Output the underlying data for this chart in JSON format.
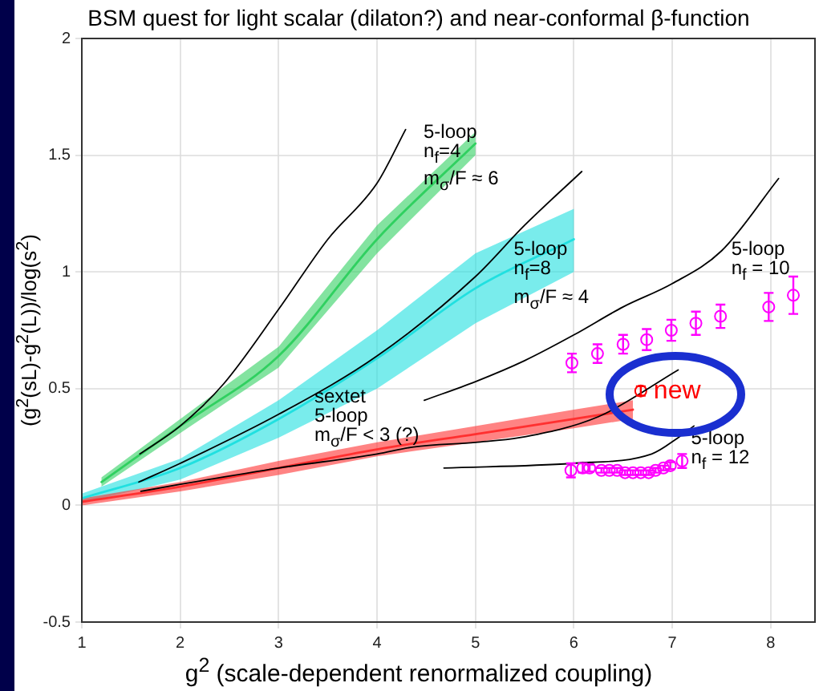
{
  "chart_data": {
    "type": "line",
    "title": "BSM quest for light scalar (dilaton?) and near-conformal  β-function",
    "xlabel": "g$^{2}$  (scale-dependent renormalized coupling)",
    "ylabel": "(g$^{2}$(sL)-g$^{2}$(L))/log(s$^{2}$)",
    "xlim": [
      1,
      8.45
    ],
    "ylim": [
      -0.5,
      2
    ],
    "xticks": [
      1,
      2,
      3,
      4,
      5,
      6,
      7,
      8
    ],
    "yticks": [
      -0.5,
      0,
      0.5,
      1,
      1.5,
      2
    ],
    "grid": true,
    "series": [
      {
        "type": "line",
        "color": "#30d060",
        "marker": "none",
        "x": [
          1.2,
          2,
          3,
          4,
          5
        ],
        "values": [
          0.1,
          0.34,
          0.64,
          1.14,
          1.55
        ],
        "lower": [
          0.08,
          0.31,
          0.59,
          1.08,
          1.5
        ],
        "upper": [
          0.12,
          0.37,
          0.68,
          1.2,
          1.6
        ]
      },
      {
        "type": "line",
        "color": "#20e0e0",
        "marker": "none",
        "x": [
          1,
          2,
          3,
          4,
          5,
          6
        ],
        "values": [
          0.03,
          0.16,
          0.37,
          0.63,
          0.93,
          1.14
        ],
        "lower": [
          0.01,
          0.11,
          0.29,
          0.5,
          0.78,
          1.0
        ],
        "upper": [
          0.05,
          0.2,
          0.45,
          0.75,
          1.08,
          1.27
        ]
      },
      {
        "type": "line",
        "color": "#ff3030",
        "marker": "none",
        "x": [
          1,
          2,
          3,
          4,
          5,
          6,
          6.6
        ],
        "values": [
          0.015,
          0.08,
          0.16,
          0.24,
          0.305,
          0.37,
          0.41
        ],
        "lower": [
          0,
          0.06,
          0.13,
          0.21,
          0.27,
          0.33,
          0.37
        ],
        "upper": [
          0.03,
          0.1,
          0.19,
          0.27,
          0.34,
          0.41,
          0.45
        ]
      },
      {
        "type": "line",
        "color": "#000000",
        "marker": "none",
        "x": [
          1.59,
          2,
          2.44,
          3,
          3.5,
          4,
          4.29
        ],
        "values": [
          0.22,
          0.34,
          0.52,
          0.84,
          1.14,
          1.38,
          1.61
        ]
      },
      {
        "type": "line",
        "color": "#000000",
        "marker": "none",
        "x": [
          1.58,
          2,
          3,
          4,
          5,
          5.5,
          6.08
        ],
        "values": [
          0.1,
          0.18,
          0.39,
          0.64,
          0.98,
          1.2,
          1.43
        ]
      },
      {
        "type": "line",
        "color": "#000000",
        "marker": "none",
        "x": [
          4.48,
          5,
          5.5,
          6,
          6.5,
          7,
          7.5,
          8.08
        ],
        "values": [
          0.45,
          0.53,
          0.62,
          0.73,
          0.85,
          0.95,
          1.09,
          1.4
        ]
      },
      {
        "type": "line",
        "color": "#000000",
        "marker": "none",
        "x": [
          1.6,
          2,
          3,
          4,
          4.37,
          5,
          5.45,
          6.25,
          7.06
        ],
        "values": [
          0.06,
          0.09,
          0.16,
          0.22,
          0.25,
          0.27,
          0.29,
          0.38,
          0.58
        ]
      },
      {
        "type": "line",
        "color": "#000000",
        "marker": "none",
        "x": [
          4.68,
          5.98,
          6.79,
          7.06,
          7.22
        ],
        "values": [
          0.16,
          0.18,
          0.22,
          0.29,
          0.34
        ]
      },
      {
        "type": "scatter",
        "color": "#ff00ff",
        "marker": "circle",
        "x": [
          5.98,
          6.24,
          6.5,
          6.74,
          6.99,
          7.24,
          7.49,
          7.98,
          8.23
        ],
        "values": [
          0.61,
          0.65,
          0.69,
          0.71,
          0.75,
          0.78,
          0.81,
          0.85,
          0.9
        ],
        "errors": [
          0.04,
          0.04,
          0.04,
          0.045,
          0.045,
          0.05,
          0.05,
          0.06,
          0.08
        ]
      },
      {
        "type": "scatter",
        "color": "#ff00ff",
        "marker": "circle",
        "x": [
          5.97,
          6.09,
          6.16,
          6.28,
          6.36,
          6.44,
          6.52,
          6.6,
          6.68,
          6.76,
          6.83,
          6.91,
          6.98,
          7.1
        ],
        "values": [
          0.15,
          0.16,
          0.16,
          0.15,
          0.15,
          0.15,
          0.14,
          0.14,
          0.14,
          0.14,
          0.15,
          0.16,
          0.17,
          0.19
        ],
        "errors": [
          0.03,
          0.02,
          0.015,
          0.01,
          0.01,
          0.01,
          0.01,
          0.01,
          0.01,
          0.01,
          0.01,
          0.01,
          0.015,
          0.03
        ]
      },
      {
        "type": "scatter",
        "name": "new",
        "color": "#ff0000",
        "marker": "circle",
        "x": [
          6.68
        ],
        "values": [
          0.49
        ],
        "errors": [
          0.02
        ]
      }
    ],
    "annotations": [
      "5-loop\nn$_{f}$=4\nm$_{σ}$/F ≈ 6",
      {
        "text": "5-loop\nn$_{f}$=8\nm$_{σ}$/F ≈ 4",
        "x": 5.39,
        "y": 1.14
      },
      {
        "text": "5-loop\nn$_{f}$ = 10",
        "x": 7.6,
        "y": 1.14
      },
      "sextet\n5-loop\nm$_{σ}$/F < 3 (?)",
      {
        "text": "5-loop\nn$_{f}$ = 12",
        "x": 7.19,
        "y": 0.33
      }
    ]
  }
}
